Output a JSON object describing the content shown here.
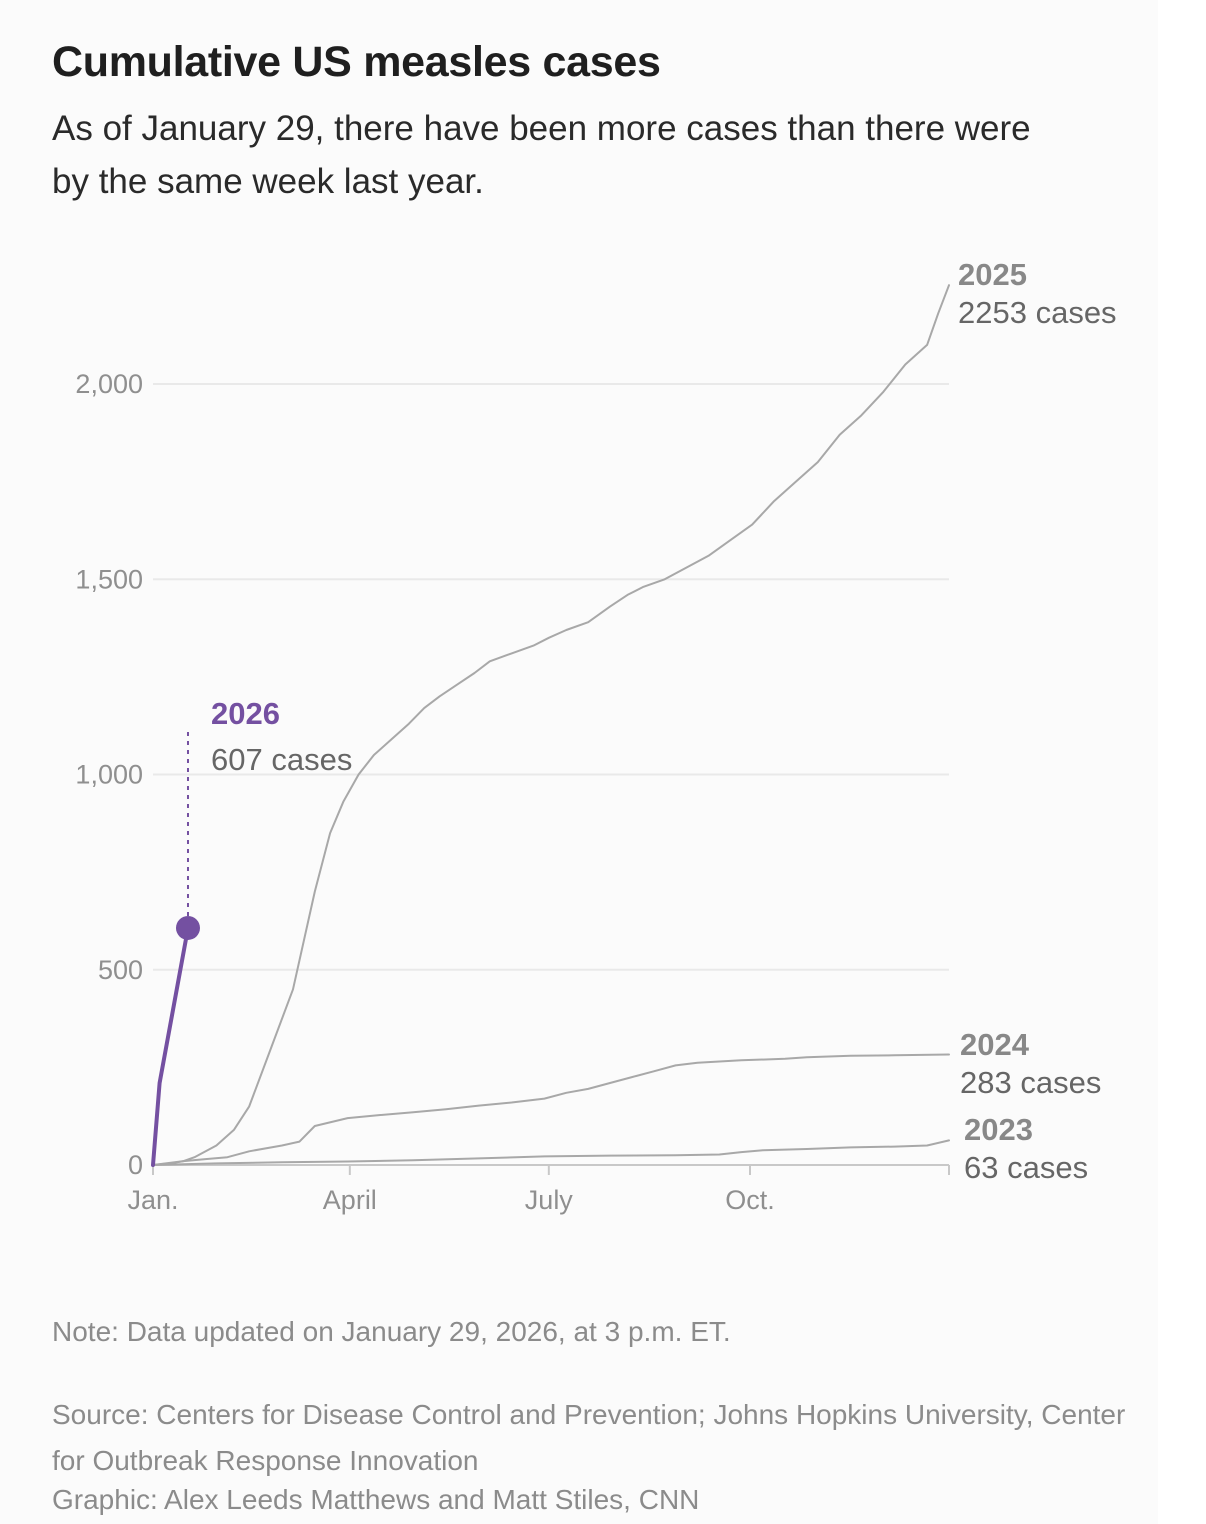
{
  "title": "Cumulative US measles cases",
  "subtitle": "As of January 29, there have been more cases than there were by the same week last year.",
  "footer": {
    "note": "Note: Data updated on January 29, 2026, at 3 p.m. ET.",
    "source": "Source: Centers for Disease Control and Prevention; Johns Hopkins University, Center for Outbreak Response Innovation",
    "credit": "Graphic: Alex Leeds Matthews and Matt Stiles, CNN"
  },
  "colors": {
    "highlight": "#7450a1",
    "other_series": "#a8a8a8",
    "label_gray": "#888888",
    "count_gray": "#666666",
    "gridline": "#e9e9e9",
    "axis": "#c8c8c8"
  },
  "chart_data": {
    "type": "line",
    "title": "Cumulative US measles cases",
    "xlabel": "",
    "ylabel": "",
    "x_unit": "day of year",
    "xlim": [
      1,
      365
    ],
    "ylim": [
      0,
      2253
    ],
    "grid": true,
    "legend": "direct labels at line ends",
    "x_ticks": [
      {
        "x": 1,
        "label": "Jan."
      },
      {
        "x": 91,
        "label": "April"
      },
      {
        "x": 182,
        "label": "July"
      },
      {
        "x": 274,
        "label": "Oct."
      }
    ],
    "y_ticks": [
      {
        "y": 0,
        "label": "0"
      },
      {
        "y": 500,
        "label": "500"
      },
      {
        "y": 1000,
        "label": "1,000"
      },
      {
        "y": 1500,
        "label": "1,500"
      },
      {
        "y": 2000,
        "label": "2,000"
      }
    ],
    "series": [
      {
        "name": "2023",
        "count_label": "63 cases",
        "highlight": false,
        "x": [
          1,
          30,
          60,
          90,
          120,
          150,
          180,
          210,
          240,
          260,
          270,
          280,
          300,
          320,
          340,
          355,
          365
        ],
        "y": [
          0,
          4,
          7,
          9,
          12,
          17,
          22,
          24,
          25,
          27,
          33,
          38,
          41,
          45,
          47,
          50,
          63
        ]
      },
      {
        "name": "2024",
        "count_label": "283 cases",
        "highlight": false,
        "x": [
          1,
          15,
          25,
          35,
          45,
          60,
          68,
          75,
          90,
          105,
          120,
          135,
          150,
          165,
          180,
          190,
          200,
          210,
          220,
          230,
          240,
          250,
          260,
          270,
          290,
          300,
          320,
          340,
          365
        ],
        "y": [
          0,
          10,
          15,
          20,
          35,
          50,
          60,
          100,
          120,
          128,
          135,
          143,
          152,
          160,
          170,
          185,
          195,
          210,
          225,
          240,
          255,
          262,
          265,
          268,
          272,
          276,
          280,
          281,
          283
        ]
      },
      {
        "name": "2025",
        "count_label": "2253 cases",
        "highlight": false,
        "x": [
          1,
          10,
          15,
          20,
          30,
          38,
          45,
          55,
          65,
          75,
          82,
          88,
          95,
          102,
          110,
          118,
          125,
          132,
          140,
          148,
          155,
          165,
          175,
          182,
          190,
          200,
          210,
          218,
          225,
          235,
          245,
          255,
          265,
          275,
          285,
          295,
          305,
          315,
          325,
          335,
          345,
          355,
          360,
          365
        ],
        "y": [
          0,
          5,
          10,
          20,
          50,
          90,
          150,
          300,
          450,
          700,
          850,
          930,
          1000,
          1050,
          1090,
          1130,
          1170,
          1200,
          1230,
          1260,
          1290,
          1310,
          1330,
          1350,
          1370,
          1390,
          1430,
          1460,
          1480,
          1500,
          1530,
          1560,
          1600,
          1640,
          1700,
          1750,
          1800,
          1870,
          1920,
          1980,
          2050,
          2100,
          2180,
          2253
        ]
      },
      {
        "name": "2026",
        "count_label": "607 cases",
        "highlight": true,
        "x": [
          1,
          4,
          17
        ],
        "y": [
          0,
          210,
          607
        ]
      }
    ]
  }
}
